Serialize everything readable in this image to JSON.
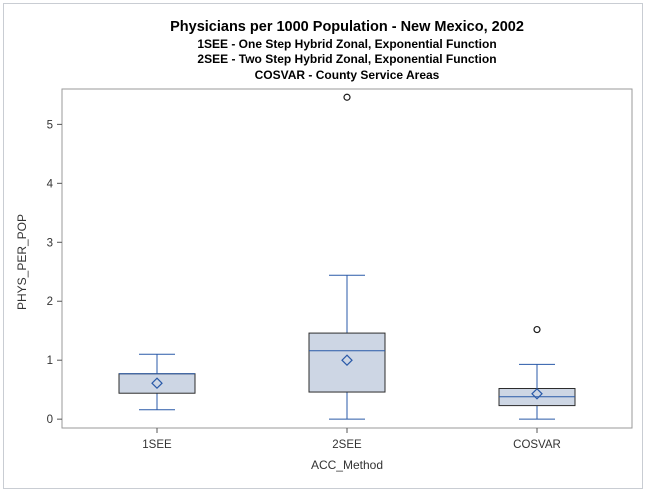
{
  "chart_data": {
    "type": "boxplot",
    "title": "Physicians per 1000 Population - New Mexico, 2002",
    "subtitles": [
      "1SEE - One Step Hybrid Zonal, Exponential Function",
      "2SEE - Two Step Hybrid Zonal, Exponential Function",
      "COSVAR - County Service Areas"
    ],
    "xlabel": "ACC_Method",
    "ylabel": "PHYS_PER_POP",
    "ylim": [
      -0.15,
      5.6
    ],
    "yticks": [
      0,
      1,
      2,
      3,
      4,
      5
    ],
    "grid": false,
    "categories": [
      "1SEE",
      "2SEE",
      "COSVAR"
    ],
    "boxes": [
      {
        "category": "1SEE",
        "whisker_low": 0.16,
        "q1": 0.44,
        "median": 0.77,
        "q3": 0.77,
        "whisker_high": 1.1,
        "mean": 0.61,
        "outliers": []
      },
      {
        "category": "2SEE",
        "whisker_low": 0.0,
        "q1": 0.46,
        "median": 1.16,
        "q3": 1.46,
        "whisker_high": 2.44,
        "mean": 1.0,
        "outliers": [
          5.46
        ]
      },
      {
        "category": "COSVAR",
        "whisker_low": 0.0,
        "q1": 0.23,
        "median": 0.38,
        "q3": 0.52,
        "whisker_high": 0.93,
        "mean": 0.43,
        "outliers": [
          1.52
        ]
      }
    ],
    "colors": {
      "box_fill": "#cdd6e4",
      "box_edge": "#2c2c2c",
      "median": "#2a5aa8",
      "whisker": "#2a5aa8",
      "mean_marker": "#2a5aa8",
      "outlier": "#1a1a1a",
      "plot_border": "#9a9a9a"
    }
  }
}
